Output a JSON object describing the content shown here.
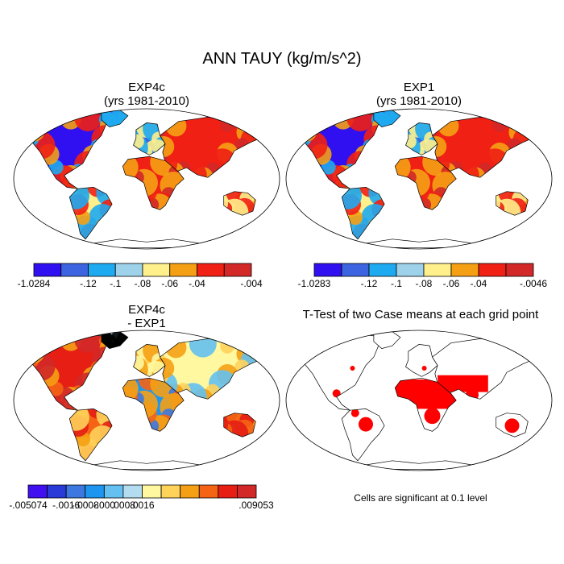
{
  "title": "ANN TAUY (kg/m/s^2)",
  "panels": [
    {
      "id": "exp4c",
      "title_lines": [
        "EXP4c",
        "(yrs 1981-2010)"
      ],
      "field": "mean",
      "colorbar": {
        "colors": [
          "#3010f0",
          "#3c64e0",
          "#1eaaf0",
          "#9ed2ea",
          "#fff08c",
          "#f5a014",
          "#f02014",
          "#d22828"
        ],
        "ticks": [
          "-1.0284",
          "-.12",
          "-.1",
          "-.08",
          "-.06",
          "-.04",
          "-.004"
        ]
      }
    },
    {
      "id": "exp1",
      "title_lines": [
        "EXP1",
        "(yrs 1981-2010)"
      ],
      "field": "mean",
      "colorbar": {
        "colors": [
          "#3010f0",
          "#3c64e0",
          "#1eaaf0",
          "#9ed2ea",
          "#fff08c",
          "#f5a014",
          "#f02014",
          "#d22828"
        ],
        "ticks": [
          "-1.0283",
          "-.12",
          "-.1",
          "-.08",
          "-.06",
          "-.04",
          "-.0046"
        ]
      }
    },
    {
      "id": "diff",
      "title_lines": [
        "EXP4c",
        "- EXP1"
      ],
      "field": "difference",
      "colorbar": {
        "colors": [
          "#4010f0",
          "#2a3ad8",
          "#3c78e0",
          "#1e96f0",
          "#64c0f0",
          "#b4dcf0",
          "#fff8a0",
          "#ffd25a",
          "#f5a014",
          "#f56414",
          "#e61e14",
          "#d22828"
        ],
        "ticks": [
          "-.005074",
          "-.0016",
          "-.0008",
          "-.000",
          ".0008",
          ".0016",
          ".009053"
        ]
      }
    },
    {
      "id": "ttest",
      "title_lines": [
        "T-Test of two Case means at each grid point"
      ],
      "field": "significance",
      "note": "Cells are significant at 0.1 level"
    }
  ],
  "chart_data": {
    "type": "heatmap",
    "variable": "ANN TAUY",
    "units": "kg/m/s^2",
    "map_projection": "robinson",
    "maps": [
      {
        "name": "EXP4c",
        "period": "1981-2010",
        "color_levels": [
          "-1.0284",
          "-.12",
          "-.1",
          "-.08",
          "-.06",
          "-.04",
          "-.004"
        ],
        "range": [
          -1.0284,
          -0.004
        ]
      },
      {
        "name": "EXP1",
        "period": "1981-2010",
        "color_levels": [
          "-1.0283",
          "-.12",
          "-.1",
          "-.08",
          "-.06",
          "-.04",
          "-.0046"
        ],
        "range": [
          -1.0283,
          -0.0046
        ]
      },
      {
        "name": "EXP4c - EXP1",
        "color_levels": [
          "-.005074",
          "-.0016",
          "-.0008",
          "-.000",
          ".0008",
          ".0016",
          ".009053"
        ],
        "range": [
          -0.005074,
          0.009053
        ]
      },
      {
        "name": "T-Test of two Case means at each grid point",
        "significance_level": 0.1
      }
    ]
  }
}
